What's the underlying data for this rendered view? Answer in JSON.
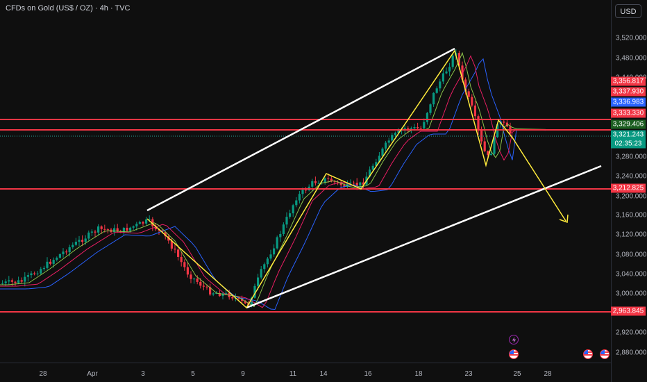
{
  "header": {
    "title": "CFDs on Gold (US$ / OZ) · 4h · TVC",
    "currency_label": "USD"
  },
  "price_axis": {
    "ticks": [
      "3,520.000",
      "3,480.000",
      "3,440.000",
      "3,280.000",
      "3,240.000",
      "3,200.000",
      "3,160.000",
      "3,120.000",
      "3,080.000",
      "3,040.000",
      "3,000.000",
      "2,920.000",
      "2,880.000"
    ],
    "tags": [
      {
        "label": "3,356.817",
        "color": "#f23645",
        "key": "tag-3356"
      },
      {
        "label": "3,337.930",
        "color": "#f23645",
        "key": "tag-3337"
      },
      {
        "label": "3,336.983",
        "color": "#2962ff",
        "key": "tag-3336"
      },
      {
        "label": "3,333.330",
        "color": "#f23645",
        "key": "tag-3333"
      },
      {
        "label": "3,329.406",
        "color": "#1b5e20",
        "key": "tag-3329"
      },
      {
        "label": "3,321.243",
        "color": "#089981",
        "key": "tag-3321"
      },
      {
        "label": "02:35:23",
        "color": "#089981",
        "key": "countdown"
      },
      {
        "label": "3,212.825",
        "color": "#f23645",
        "key": "tag-3212"
      },
      {
        "label": "2,963.845",
        "color": "#f23645",
        "key": "tag-2963"
      }
    ]
  },
  "time_axis": {
    "ticks": [
      "28",
      "Apr",
      "3",
      "5",
      "9",
      "11",
      "14",
      "16",
      "18",
      "23",
      "25",
      "28"
    ]
  },
  "colors": {
    "up": "#089981",
    "down": "#f23645",
    "channel": "#ffffff",
    "zigzag": "#ffeb3b",
    "level": "#f23645",
    "ma_fast": "#8bc34a",
    "ma_mid": "#e91e63",
    "ma_slow": "#2962ff",
    "ma_extra": "#9c27b0"
  },
  "icons": {
    "lightning": "lightning-icon",
    "flag": "us-flag-icon"
  }
}
